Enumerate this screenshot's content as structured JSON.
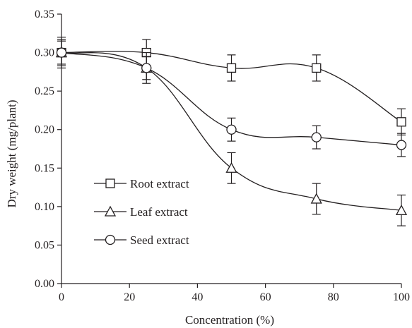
{
  "chart_data": {
    "type": "line",
    "xlabel": "Concentration (%)",
    "ylabel": "Dry weight (mg/plant)",
    "xlim": [
      0,
      100
    ],
    "ylim": [
      0,
      0.35
    ],
    "x_ticks": [
      "0",
      "20",
      "40",
      "60",
      "80",
      "100"
    ],
    "y_ticks": [
      "0.00",
      "0.05",
      "0.10",
      "0.15",
      "0.20",
      "0.25",
      "0.30",
      "0.35"
    ],
    "grid": false,
    "legend_position": "bottom-left",
    "x": [
      0,
      25,
      50,
      75,
      100
    ],
    "series": [
      {
        "name": "Root extract",
        "marker": "square",
        "values": [
          0.3,
          0.3,
          0.28,
          0.28,
          0.21
        ],
        "errors": [
          0.017,
          0.017,
          0.017,
          0.017,
          0.017
        ]
      },
      {
        "name": "Leaf extract",
        "marker": "triangle",
        "values": [
          0.3,
          0.28,
          0.15,
          0.11,
          0.095
        ],
        "errors": [
          0.02,
          0.02,
          0.02,
          0.02,
          0.02
        ]
      },
      {
        "name": "Seed extract",
        "marker": "circle",
        "values": [
          0.3,
          0.28,
          0.2,
          0.19,
          0.18
        ],
        "errors": [
          0.015,
          0.015,
          0.015,
          0.015,
          0.015
        ]
      }
    ],
    "line_color": "#231f20"
  }
}
